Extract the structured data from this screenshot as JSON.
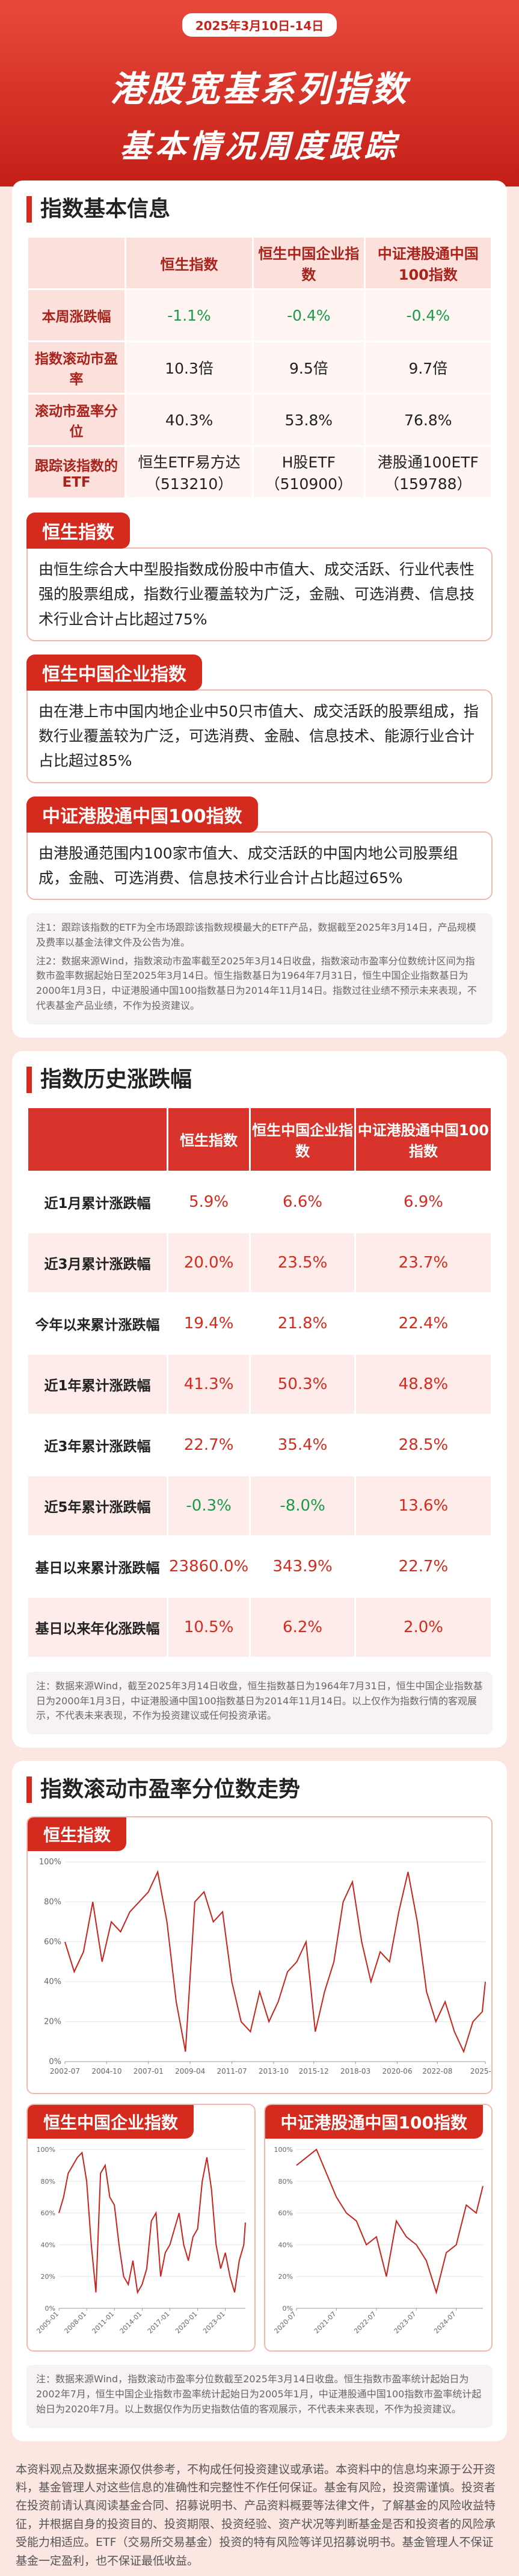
{
  "header": {
    "date": "2025年3月10日-14日",
    "title_line1": "港股宽基系列指数",
    "title_line2": "基本情况周度跟踪"
  },
  "basic_info": {
    "title": "指数基本信息",
    "table": {
      "columns": [
        "恒生指数",
        "恒生中国企业指数",
        "中证港股通中国100指数"
      ],
      "rows": [
        {
          "label": "本周涨跌幅",
          "cells": [
            "-1.1%",
            "-0.4%",
            "-0.4%"
          ]
        },
        {
          "label": "指数滚动市盈率",
          "cells": [
            "10.3倍",
            "9.5倍",
            "9.7倍"
          ]
        },
        {
          "label": "滚动市盈率分位",
          "cells": [
            "40.3%",
            "53.8%",
            "76.8%"
          ]
        },
        {
          "label": "跟踪该指数的ETF",
          "cells": [
            "恒生ETF易方达（513210）",
            "H股ETF（510900）",
            "港股通100ETF（159788）"
          ]
        }
      ]
    },
    "descriptions": [
      {
        "title": "恒生指数",
        "text": "由恒生综合大中型股指数成份股中市值大、成交活跃、行业代表性强的股票组成，指数行业覆盖较为广泛，金融、可选消费、信息技术行业合计占比超过75%"
      },
      {
        "title": "恒生中国企业指数",
        "text": "由在港上市中国内地企业中50只市值大、成交活跃的股票组成，指数行业覆盖较为广泛，可选消费、金融、信息技术、能源行业合计占比超过85%"
      },
      {
        "title": "中证港股通中国100指数",
        "text": "由港股通范围内100家市值大、成交活跃的中国内地公司股票组成，金融、可选消费、信息技术行业合计占比超过65%"
      }
    ],
    "notes": [
      "注1：跟踪该指数的ETF为全市场跟踪该指数规模最大的ETF产品，数据截至2025年3月14日，产品规模及费率以基金法律文件及公告为准。",
      "注2：数据来源Wind，指数滚动市盈率截至2025年3月14日收盘，指数滚动市盈率分位数统计区间为指数市盈率数据起始日至2025年3月14日。恒生指数基日为1964年7月31日，恒生中国企业指数基日为2000年1月3日，中证港股通中国100指数基日为2014年11月14日。指数过往业绩不预示未来表现，不代表基金产品业绩，不作为投资建议。"
    ]
  },
  "history": {
    "title": "指数历史涨跌幅",
    "table": {
      "columns": [
        "恒生指数",
        "恒生中国企业指数",
        "中证港股通中国100指数"
      ],
      "rows": [
        {
          "label": "近1月累计涨跌幅",
          "cells": [
            "5.9%",
            "6.6%",
            "6.9%"
          ]
        },
        {
          "label": "近3月累计涨跌幅",
          "cells": [
            "20.0%",
            "23.5%",
            "23.7%"
          ]
        },
        {
          "label": "今年以来累计涨跌幅",
          "cells": [
            "19.4%",
            "21.8%",
            "22.4%"
          ]
        },
        {
          "label": "近1年累计涨跌幅",
          "cells": [
            "41.3%",
            "50.3%",
            "48.8%"
          ]
        },
        {
          "label": "近3年累计涨跌幅",
          "cells": [
            "22.7%",
            "35.4%",
            "28.5%"
          ]
        },
        {
          "label": "近5年累计涨跌幅",
          "cells": [
            "-0.3%",
            "-8.0%",
            "13.6%"
          ]
        },
        {
          "label": "基日以来累计涨跌幅",
          "cells": [
            "23860.0%",
            "343.9%",
            "22.7%"
          ]
        },
        {
          "label": "基日以来年化涨跌幅",
          "cells": [
            "10.5%",
            "6.2%",
            "2.0%"
          ]
        }
      ]
    },
    "note": "注：数据来源Wind，截至2025年3月14日收盘，恒生指数基日为1964年7月31日，恒生中国企业指数基日为2000年1月3日，中证港股通中国100指数基日为2014年11月14日。以上仅作为指数行情的客观展示，不代表未来表现，不作为投资建议或任何投资承诺。"
  },
  "pe": {
    "title": "指数滚动市盈率分位数走势",
    "note": "注：数据来源Wind，指数滚动市盈率分位数截至2025年3月14日收盘。恒生指数市盈率统计起始日为2002年7月，恒生中国企业指数市盈率统计起始日为2005年1月，中证港股通中国100指数市盈率统计起始日为2020年7月。以上数据仅作为历史指数估值的客观展示，不代表未来表现，不作为投资建议。"
  },
  "chart_data": [
    {
      "type": "line",
      "title": "恒生指数",
      "color": "#c8231b",
      "grid": true,
      "x": [
        "2002-07",
        "2003-01",
        "2003-07",
        "2004-01",
        "2004-07",
        "2005-01",
        "2005-07",
        "2006-01",
        "2006-07",
        "2007-01",
        "2007-07",
        "2008-01",
        "2008-07",
        "2009-01",
        "2009-07",
        "2010-01",
        "2010-07",
        "2011-01",
        "2011-07",
        "2012-01",
        "2012-07",
        "2013-01",
        "2013-07",
        "2014-01",
        "2014-07",
        "2015-01",
        "2015-07",
        "2016-01",
        "2016-07",
        "2017-01",
        "2017-07",
        "2018-01",
        "2018-07",
        "2019-01",
        "2019-07",
        "2020-01",
        "2020-07",
        "2021-01",
        "2021-07",
        "2022-01",
        "2022-07",
        "2023-01",
        "2023-07",
        "2024-01",
        "2024-07",
        "2025-01",
        "2025-03"
      ],
      "values": [
        60,
        45,
        55,
        80,
        50,
        70,
        65,
        75,
        80,
        85,
        95,
        70,
        30,
        5,
        80,
        85,
        70,
        75,
        40,
        20,
        15,
        35,
        20,
        30,
        45,
        50,
        60,
        15,
        35,
        50,
        80,
        90,
        60,
        40,
        55,
        50,
        75,
        95,
        70,
        35,
        20,
        30,
        15,
        5,
        20,
        25,
        40
      ],
      "xlim": [
        "2002-07",
        "2025-03"
      ],
      "xticks": [
        "2002-07",
        "2004-10",
        "2007-01",
        "2009-04",
        "2011-07",
        "2013-10",
        "2015-12",
        "2018-03",
        "2020-06",
        "2022-08",
        "2025-03"
      ],
      "ylim": [
        0,
        100
      ],
      "yticks": [
        {
          "value": 0,
          "label": "0%"
        },
        {
          "value": 20,
          "label": "20%"
        },
        {
          "value": 40,
          "label": "40%"
        },
        {
          "value": 60,
          "label": "60%"
        },
        {
          "value": 80,
          "label": "80%"
        },
        {
          "value": 100,
          "label": "100%"
        }
      ]
    },
    {
      "type": "line",
      "title": "恒生中国企业指数",
      "color": "#c8231b",
      "grid": true,
      "x": [
        "2005-01",
        "2005-07",
        "2006-01",
        "2006-07",
        "2007-01",
        "2007-07",
        "2008-01",
        "2008-07",
        "2009-01",
        "2009-07",
        "2010-01",
        "2010-07",
        "2011-01",
        "2011-07",
        "2012-01",
        "2012-07",
        "2013-01",
        "2013-07",
        "2014-01",
        "2014-07",
        "2015-01",
        "2015-07",
        "2016-01",
        "2016-07",
        "2017-01",
        "2017-07",
        "2018-01",
        "2018-07",
        "2019-01",
        "2019-07",
        "2020-01",
        "2020-07",
        "2021-01",
        "2021-07",
        "2022-01",
        "2022-07",
        "2023-01",
        "2023-07",
        "2024-01",
        "2024-07",
        "2025-01",
        "2025-03"
      ],
      "values": [
        60,
        70,
        85,
        90,
        95,
        98,
        80,
        40,
        10,
        85,
        90,
        70,
        65,
        40,
        20,
        15,
        30,
        10,
        15,
        25,
        55,
        60,
        20,
        35,
        40,
        50,
        60,
        40,
        30,
        45,
        50,
        80,
        95,
        75,
        40,
        25,
        35,
        20,
        10,
        30,
        40,
        54
      ],
      "xlim": [
        "2005-01",
        "2025-03"
      ],
      "xticks": [
        "2005-01",
        "2008-01",
        "2011-01",
        "2014-01",
        "2017-01",
        "2020-01",
        "2023-01"
      ],
      "ylim": [
        0,
        100
      ],
      "yticks": [
        {
          "value": 0,
          "label": "0%"
        },
        {
          "value": 20,
          "label": "20%"
        },
        {
          "value": 40,
          "label": "40%"
        },
        {
          "value": 60,
          "label": "60%"
        },
        {
          "value": 80,
          "label": "80%"
        },
        {
          "value": 100,
          "label": "100%"
        }
      ]
    },
    {
      "type": "line",
      "title": "中证港股通中国100指数",
      "color": "#c8231b",
      "grid": true,
      "x": [
        "2020-07",
        "2020-10",
        "2021-01",
        "2021-04",
        "2021-07",
        "2021-10",
        "2022-01",
        "2022-04",
        "2022-07",
        "2022-10",
        "2023-01",
        "2023-04",
        "2023-07",
        "2023-10",
        "2024-01",
        "2024-04",
        "2024-07",
        "2024-10",
        "2025-01",
        "2025-03"
      ],
      "values": [
        90,
        95,
        100,
        85,
        70,
        60,
        55,
        40,
        45,
        20,
        55,
        45,
        40,
        30,
        10,
        35,
        40,
        65,
        60,
        77
      ],
      "xlim": [
        "2020-07",
        "2025-03"
      ],
      "xticks": [
        "2020-07",
        "2021-07",
        "2022-07",
        "2023-07",
        "2024-07"
      ],
      "ylim": [
        0,
        100
      ],
      "yticks": [
        {
          "value": 0,
          "label": "0%"
        },
        {
          "value": 20,
          "label": "20%"
        },
        {
          "value": 40,
          "label": "40%"
        },
        {
          "value": 60,
          "label": "60%"
        },
        {
          "value": 80,
          "label": "80%"
        },
        {
          "value": 100,
          "label": "100%"
        }
      ]
    }
  ],
  "disclaimer": "本资料观点及数据来源仅供参考，不构成任何投资建议或承诺。本资料中的信息均来源于公开资料，基金管理人对这些信息的准确性和完整性不作任何保证。基金有风险，投资需谨慎。投资者在投资前请认真阅读基金合同、招募说明书、产品资料概要等法律文件，了解基金的风险收益特征，并根据自身的投资目的、投资期限、投资经验、资产状况等判断基金是否和投资者的风险承受能力相适应。ETF（交易所交易基金）投资的特有风险等详见招募说明书。基金管理人不保证基金一定盈利，也不保证最低收益。"
}
